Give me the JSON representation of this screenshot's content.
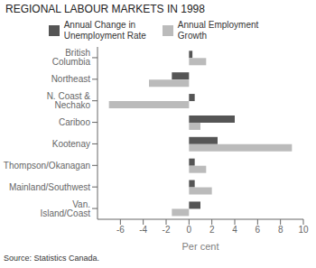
{
  "chart_data": {
    "type": "bar",
    "orientation": "horizontal",
    "title": "REGIONAL LABOUR MARKETS IN 1998",
    "x_label": "Per cent",
    "annotations": [
      "Source: Statistics Canada."
    ],
    "categories": [
      "British Columbia",
      "Northeast",
      "N. Coast & Nechako",
      "Cariboo",
      "Kootenay",
      "Thompson/Okanagan",
      "Mainland/Southwest",
      "Van. Island/Coast"
    ],
    "series": [
      {
        "name": "Annual Change in\nUnemployment Rate",
        "color": "#555555",
        "values": [
          0.3,
          -1.5,
          0.5,
          4.0,
          2.5,
          0.5,
          0.5,
          1.0
        ]
      },
      {
        "name": "Annual Employment\nGrowth",
        "color": "#bbbbbb",
        "values": [
          1.5,
          -3.5,
          -7.0,
          1.0,
          9.0,
          1.5,
          2.0,
          -1.5
        ]
      }
    ],
    "xlim": [
      -8,
      10
    ],
    "xticks": [
      -6,
      -4,
      -2,
      0,
      2,
      4,
      6,
      8,
      10
    ],
    "grid": false,
    "legend": "top"
  }
}
